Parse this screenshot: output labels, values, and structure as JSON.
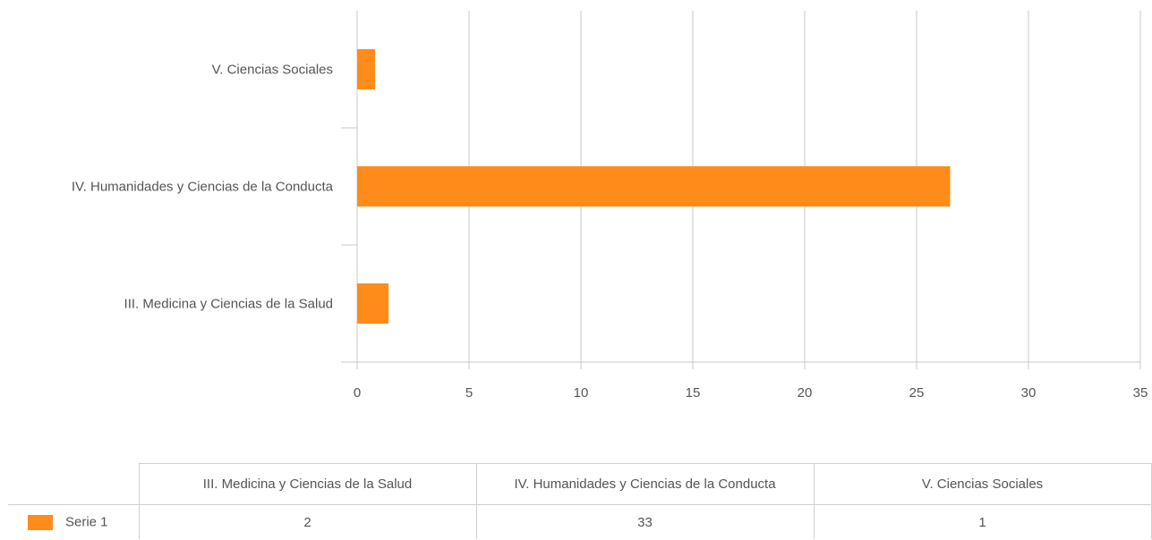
{
  "chart_data": {
    "type": "bar",
    "orientation": "horizontal",
    "categories": [
      "III. Medicina y Ciencias de la Salud",
      "IV. Humanidades y Ciencias de la Conducta",
      "V. Ciencias Sociales"
    ],
    "series": [
      {
        "name": "Serie 1",
        "values": [
          1.4,
          26.5,
          0.8
        ],
        "color": "#ff8c1a"
      }
    ],
    "xlim": [
      0,
      35
    ],
    "x_ticks": [
      "0",
      "5",
      "10",
      "15",
      "20",
      "25",
      "30",
      "35"
    ],
    "grid": "vertical",
    "title": "",
    "xlabel": "",
    "ylabel": ""
  },
  "data_table": {
    "headers": [
      "III. Medicina y Ciencias de la Salud",
      "IV. Humanidades y Ciencias de la Conducta",
      "V. Ciencias Sociales"
    ],
    "rows": [
      {
        "label": "Serie 1",
        "color": "#ff8c1a",
        "values": [
          "2",
          "33",
          "1"
        ]
      }
    ]
  }
}
